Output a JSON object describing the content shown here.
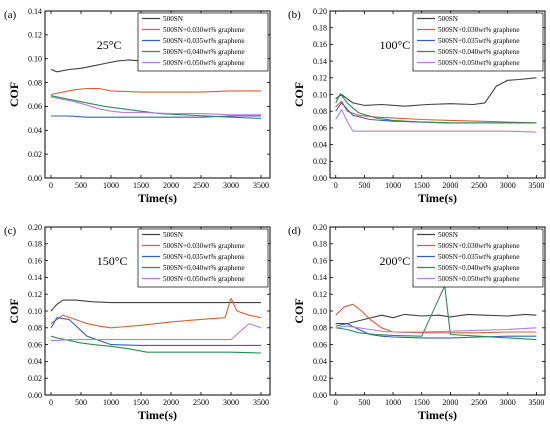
{
  "chart_data": [
    {
      "type": "line",
      "panel_label": "(a)",
      "annotation": "25°C",
      "xlabel": "Time(s)",
      "ylabel": "COF",
      "xlim": [
        -100,
        3650
      ],
      "ylim": [
        0.0,
        0.14
      ],
      "xticks": [
        0,
        500,
        1000,
        1500,
        2000,
        2500,
        3000,
        3500
      ],
      "yticks": [
        0.0,
        0.02,
        0.04,
        0.06,
        0.08,
        0.1,
        0.12,
        0.14
      ],
      "ytick_labels": [
        "0.00",
        "0.02",
        "0.04",
        "0.06",
        "0.08",
        "0.10",
        "0.12",
        "0.14"
      ],
      "legend_position": "top-right",
      "series": [
        {
          "name": "500SN",
          "color": "#404040",
          "x": [
            0,
            100,
            300,
            500,
            700,
            900,
            1100,
            1300,
            1500,
            1700,
            2000,
            2500,
            3000,
            3500
          ],
          "y": [
            0.091,
            0.089,
            0.091,
            0.092,
            0.094,
            0.096,
            0.098,
            0.099,
            0.098,
            0.096,
            0.095,
            0.095,
            0.095,
            0.095
          ]
        },
        {
          "name": "500SN+0.030wt% graphene",
          "color": "#d9603b",
          "x": [
            0,
            200,
            400,
            600,
            800,
            1000,
            1500,
            2000,
            2500,
            3000,
            3500
          ],
          "y": [
            0.07,
            0.072,
            0.074,
            0.075,
            0.075,
            0.073,
            0.072,
            0.072,
            0.072,
            0.073,
            0.073
          ]
        },
        {
          "name": "500SN+0.035wt% graphene",
          "color": "#3a5fb8",
          "x": [
            0,
            100,
            300,
            600,
            1000,
            1500,
            2000,
            2500,
            3000,
            3500
          ],
          "y": [
            0.052,
            0.052,
            0.052,
            0.051,
            0.051,
            0.051,
            0.051,
            0.051,
            0.052,
            0.052
          ]
        },
        {
          "name": "500SN+0.040wt% graphene",
          "color": "#2e8b57",
          "x": [
            0,
            300,
            600,
            900,
            1200,
            1500,
            1800,
            2200,
            2600,
            3000,
            3500
          ],
          "y": [
            0.069,
            0.066,
            0.063,
            0.06,
            0.058,
            0.056,
            0.054,
            0.053,
            0.052,
            0.051,
            0.05
          ]
        },
        {
          "name": "500SN+0.050wt% graphene",
          "color": "#b57edc",
          "x": [
            0,
            200,
            400,
            600,
            800,
            1000,
            1200,
            1500,
            2000,
            2500,
            3000,
            3500
          ],
          "y": [
            0.068,
            0.066,
            0.064,
            0.061,
            0.058,
            0.056,
            0.055,
            0.055,
            0.054,
            0.054,
            0.053,
            0.053
          ]
        }
      ]
    },
    {
      "type": "line",
      "panel_label": "(b)",
      "annotation": "100°C",
      "xlabel": "Time(s)",
      "ylabel": "COF",
      "xlim": [
        -100,
        3650
      ],
      "ylim": [
        0.0,
        0.2
      ],
      "xticks": [
        0,
        500,
        1000,
        1500,
        2000,
        2500,
        3000,
        3500
      ],
      "yticks": [
        0.0,
        0.02,
        0.04,
        0.06,
        0.08,
        0.1,
        0.12,
        0.14,
        0.16,
        0.18,
        0.2
      ],
      "ytick_labels": [
        "0.00",
        "0.02",
        "0.04",
        "0.06",
        "0.08",
        "0.10",
        "0.12",
        "0.14",
        "0.16",
        "0.18",
        "0.20"
      ],
      "legend_position": "top-right",
      "series": [
        {
          "name": "500SN",
          "color": "#404040",
          "x": [
            0,
            100,
            300,
            500,
            800,
            1200,
            1600,
            2000,
            2400,
            2600,
            2800,
            3000,
            3200,
            3500
          ],
          "y": [
            0.095,
            0.1,
            0.09,
            0.087,
            0.088,
            0.086,
            0.088,
            0.089,
            0.088,
            0.09,
            0.11,
            0.117,
            0.118,
            0.12
          ]
        },
        {
          "name": "500SN+0.030wt% graphene",
          "color": "#d9603b",
          "x": [
            0,
            100,
            200,
            400,
            700,
            1000,
            1500,
            2000,
            2500,
            3000,
            3500
          ],
          "y": [
            0.085,
            0.092,
            0.08,
            0.075,
            0.073,
            0.072,
            0.07,
            0.069,
            0.068,
            0.067,
            0.066
          ]
        },
        {
          "name": "500SN+0.035wt% graphene",
          "color": "#3a5fb8",
          "x": [
            0,
            100,
            300,
            600,
            1000,
            1500,
            2000,
            2500,
            3000,
            3500
          ],
          "y": [
            0.08,
            0.09,
            0.075,
            0.07,
            0.068,
            0.067,
            0.066,
            0.066,
            0.066,
            0.066
          ]
        },
        {
          "name": "500SN+0.040wt% graphene",
          "color": "#2e8b57",
          "x": [
            0,
            80,
            200,
            400,
            700,
            1000,
            1500,
            2000,
            2500,
            3000,
            3500
          ],
          "y": [
            0.09,
            0.101,
            0.09,
            0.078,
            0.072,
            0.069,
            0.067,
            0.066,
            0.066,
            0.066,
            0.066
          ]
        },
        {
          "name": "500SN+0.050wt% graphene",
          "color": "#b57edc",
          "x": [
            0,
            100,
            200,
            300,
            500,
            1000,
            1500,
            2000,
            2500,
            3000,
            3500
          ],
          "y": [
            0.07,
            0.082,
            0.068,
            0.056,
            0.056,
            0.056,
            0.056,
            0.056,
            0.056,
            0.056,
            0.055
          ]
        }
      ]
    },
    {
      "type": "line",
      "panel_label": "(c)",
      "annotation": "150°C",
      "xlabel": "Time(s)",
      "ylabel": "COF",
      "xlim": [
        -100,
        3650
      ],
      "ylim": [
        0.0,
        0.2
      ],
      "xticks": [
        0,
        500,
        1000,
        1500,
        2000,
        2500,
        3000,
        3500
      ],
      "yticks": [
        0.0,
        0.02,
        0.04,
        0.06,
        0.08,
        0.1,
        0.12,
        0.14,
        0.16,
        0.18,
        0.2
      ],
      "ytick_labels": [
        "0.00",
        "0.02",
        "0.04",
        "0.06",
        "0.08",
        "0.10",
        "0.12",
        "0.14",
        "0.16",
        "0.18",
        "0.20"
      ],
      "legend_position": "top-right",
      "series": [
        {
          "name": "500SN",
          "color": "#404040",
          "x": [
            0,
            100,
            200,
            400,
            700,
            1000,
            1500,
            2000,
            2500,
            3000,
            3500
          ],
          "y": [
            0.1,
            0.108,
            0.113,
            0.113,
            0.111,
            0.11,
            0.11,
            0.11,
            0.11,
            0.11,
            0.11
          ]
        },
        {
          "name": "500SN+0.030wt% graphene",
          "color": "#d9603b",
          "x": [
            0,
            200,
            400,
            600,
            800,
            1000,
            1500,
            2000,
            2500,
            2900,
            3000,
            3100,
            3300,
            3500
          ],
          "y": [
            0.085,
            0.095,
            0.09,
            0.085,
            0.082,
            0.08,
            0.083,
            0.087,
            0.09,
            0.092,
            0.115,
            0.1,
            0.095,
            0.092
          ]
        },
        {
          "name": "500SN+0.035wt% graphene",
          "color": "#3a5fb8",
          "x": [
            0,
            100,
            300,
            600,
            1000,
            1500,
            2000,
            2500,
            3000,
            3500
          ],
          "y": [
            0.08,
            0.092,
            0.09,
            0.07,
            0.06,
            0.059,
            0.059,
            0.059,
            0.059,
            0.059
          ]
        },
        {
          "name": "500SN+0.040wt% graphene",
          "color": "#2e8b57",
          "x": [
            0,
            100,
            300,
            500,
            700,
            1000,
            1300,
            1600,
            2000,
            2500,
            3000,
            3500
          ],
          "y": [
            0.07,
            0.068,
            0.065,
            0.062,
            0.06,
            0.058,
            0.055,
            0.051,
            0.051,
            0.051,
            0.051,
            0.05
          ]
        },
        {
          "name": "500SN+0.050wt% graphene",
          "color": "#b57edc",
          "x": [
            0,
            100,
            300,
            500,
            800,
            1000,
            1500,
            2000,
            2500,
            3000,
            3300,
            3500
          ],
          "y": [
            0.065,
            0.065,
            0.066,
            0.066,
            0.066,
            0.066,
            0.066,
            0.066,
            0.066,
            0.066,
            0.085,
            0.08
          ]
        }
      ]
    },
    {
      "type": "line",
      "panel_label": "(d)",
      "annotation": "200°C",
      "xlabel": "Time(s)",
      "ylabel": "COF",
      "xlim": [
        -100,
        3650
      ],
      "ylim": [
        0.0,
        0.2
      ],
      "xticks": [
        0,
        500,
        1000,
        1500,
        2000,
        2500,
        3000,
        3500
      ],
      "yticks": [
        0.0,
        0.02,
        0.04,
        0.06,
        0.08,
        0.1,
        0.12,
        0.14,
        0.16,
        0.18,
        0.2
      ],
      "ytick_labels": [
        "0.00",
        "0.02",
        "0.04",
        "0.06",
        "0.08",
        "0.10",
        "0.12",
        "0.14",
        "0.16",
        "0.18",
        "0.20"
      ],
      "legend_position": "top-right",
      "series": [
        {
          "name": "500SN",
          "color": "#404040",
          "x": [
            0,
            200,
            500,
            800,
            1000,
            1200,
            1500,
            1800,
            2000,
            2300,
            2600,
            3000,
            3300,
            3500
          ],
          "y": [
            0.085,
            0.085,
            0.09,
            0.095,
            0.092,
            0.096,
            0.094,
            0.095,
            0.093,
            0.096,
            0.095,
            0.094,
            0.096,
            0.095
          ]
        },
        {
          "name": "500SN+0.030wt% graphene",
          "color": "#d9603b",
          "x": [
            0,
            150,
            300,
            450,
            600,
            800,
            1000,
            1500,
            2000,
            2500,
            3000,
            3500
          ],
          "y": [
            0.095,
            0.105,
            0.108,
            0.1,
            0.09,
            0.08,
            0.075,
            0.074,
            0.074,
            0.074,
            0.075,
            0.075
          ]
        },
        {
          "name": "500SN+0.035wt% graphene",
          "color": "#3a5fb8",
          "x": [
            0,
            200,
            400,
            600,
            800,
            1000,
            1500,
            2000,
            2500,
            3000,
            3500
          ],
          "y": [
            0.082,
            0.085,
            0.078,
            0.072,
            0.07,
            0.069,
            0.068,
            0.068,
            0.069,
            0.07,
            0.07
          ]
        },
        {
          "name": "500SN+0.040wt% graphene",
          "color": "#2e8b57",
          "x": [
            0,
            200,
            400,
            700,
            1000,
            1500,
            1900,
            2000,
            2500,
            3000,
            3500
          ],
          "y": [
            0.08,
            0.078,
            0.074,
            0.072,
            0.071,
            0.07,
            0.13,
            0.072,
            0.07,
            0.068,
            0.066
          ]
        },
        {
          "name": "500SN+0.050wt% graphene",
          "color": "#b57edc",
          "x": [
            0,
            200,
            400,
            600,
            800,
            1000,
            1500,
            2000,
            2500,
            3000,
            3500
          ],
          "y": [
            0.08,
            0.082,
            0.08,
            0.078,
            0.076,
            0.075,
            0.075,
            0.076,
            0.077,
            0.078,
            0.08
          ]
        }
      ]
    }
  ]
}
